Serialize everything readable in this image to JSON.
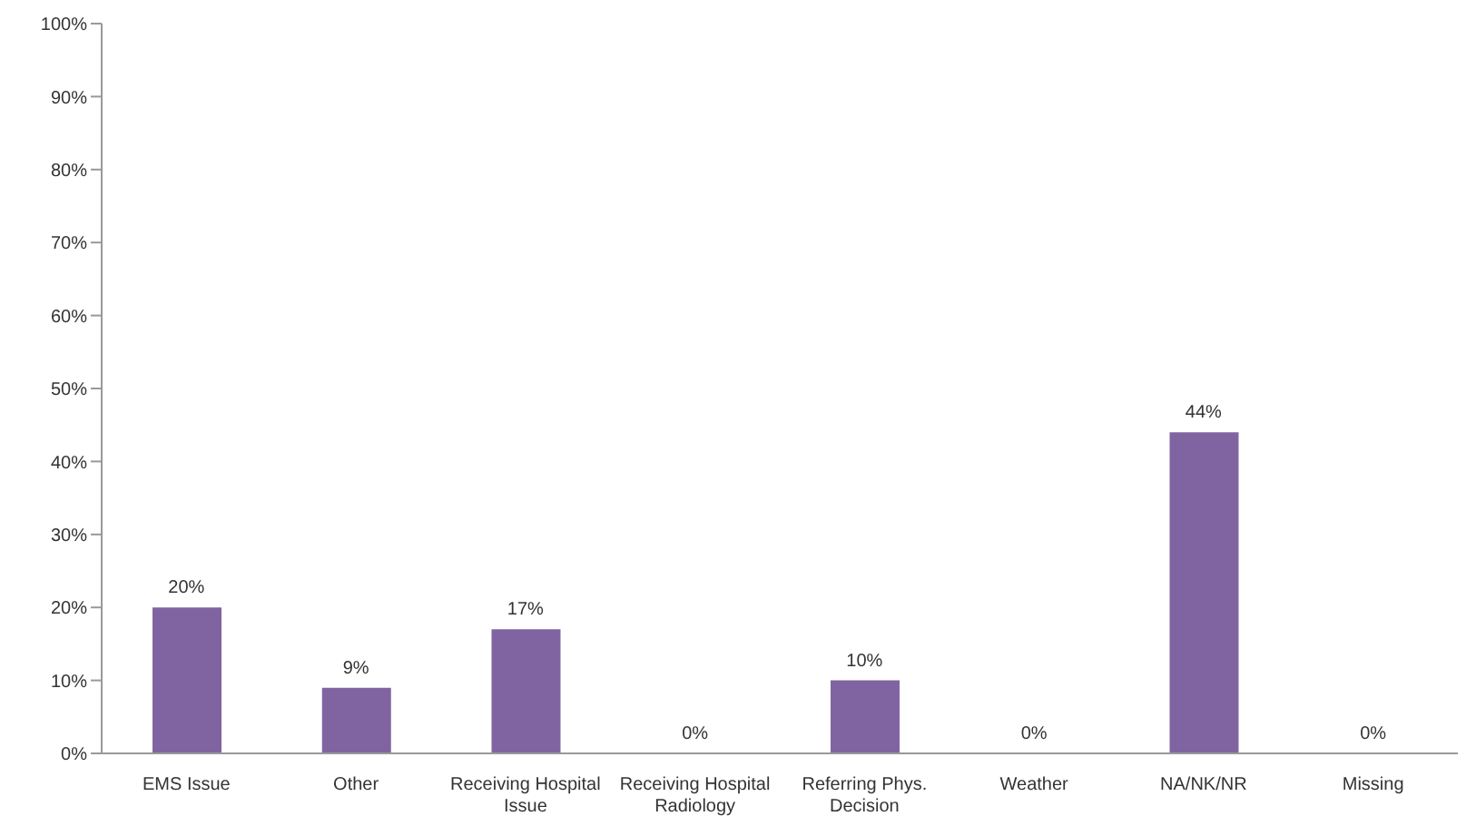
{
  "chart_data": {
    "type": "bar",
    "categories": [
      "EMS Issue",
      "Other",
      "Receiving Hospital Issue",
      "Receiving Hospital Radiology",
      "Referring Phys. Decision",
      "Weather",
      "NA/NK/NR",
      "Missing"
    ],
    "values": [
      20,
      9,
      17,
      0,
      10,
      0,
      44,
      0
    ],
    "value_labels": [
      "20%",
      "9%",
      "17%",
      "0%",
      "10%",
      "0%",
      "44%",
      "0%"
    ],
    "color": "#8064a2",
    "ylim": [
      0,
      100
    ],
    "yticks": [
      {
        "value": 0,
        "label": "0%"
      },
      {
        "value": 10,
        "label": "10%"
      },
      {
        "value": 20,
        "label": "20%"
      },
      {
        "value": 30,
        "label": "30%"
      },
      {
        "value": 40,
        "label": "40%"
      },
      {
        "value": 50,
        "label": "50%"
      },
      {
        "value": 60,
        "label": "60%"
      },
      {
        "value": 70,
        "label": "70%"
      },
      {
        "value": 80,
        "label": "80%"
      },
      {
        "value": 90,
        "label": "90%"
      },
      {
        "value": 100,
        "label": "100%"
      }
    ],
    "grid": false,
    "legend": false
  }
}
